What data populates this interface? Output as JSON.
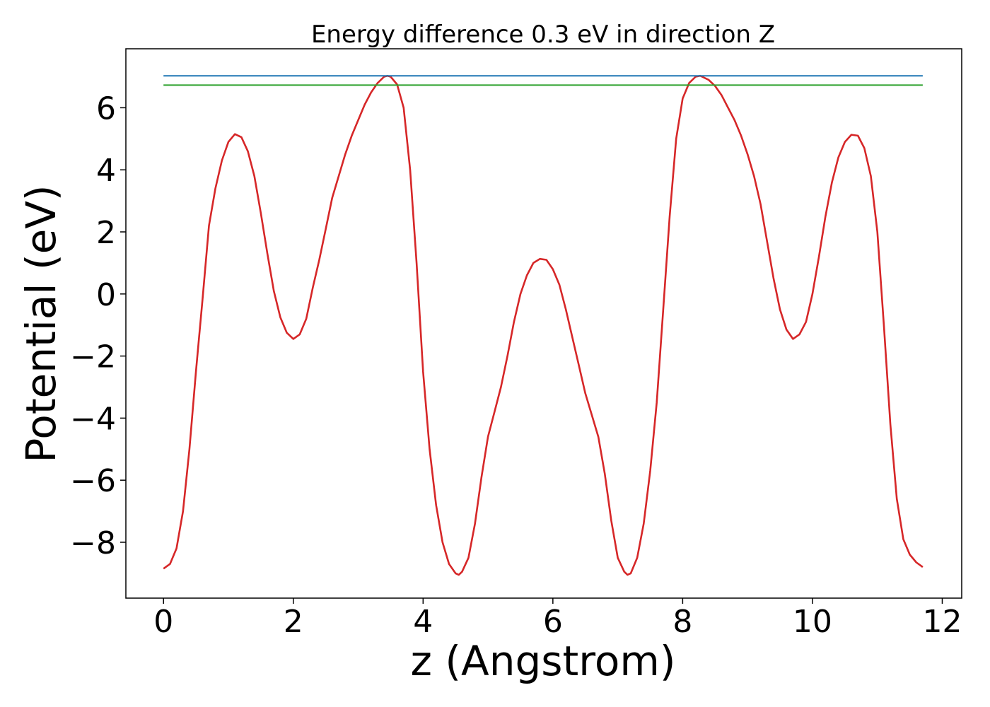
{
  "chart_data": {
    "type": "line",
    "title": "Energy difference 0.3 eV in direction Z",
    "xlabel": "z (Angstrom)",
    "ylabel": "Potential (eV)",
    "xlim": [
      -0.58,
      12.3
    ],
    "ylim": [
      -9.8,
      7.9
    ],
    "xticks": [
      0,
      2,
      4,
      6,
      8,
      10,
      12
    ],
    "yticks": [
      -8,
      -6,
      -4,
      -2,
      0,
      2,
      4,
      6
    ],
    "xtick_labels": [
      "0",
      "2",
      "4",
      "6",
      "8",
      "10",
      "12"
    ],
    "ytick_labels": [
      "−8",
      "−6",
      "−4",
      "−2",
      "0",
      "2",
      "4",
      "6"
    ],
    "grid": false,
    "legend": "none",
    "series": [
      {
        "color": "#d62728",
        "points": [
          [
            0.0,
            -8.85
          ],
          [
            0.1,
            -8.7
          ],
          [
            0.2,
            -8.2
          ],
          [
            0.3,
            -7.0
          ],
          [
            0.4,
            -5.0
          ],
          [
            0.5,
            -2.5
          ],
          [
            0.6,
            -0.2
          ],
          [
            0.7,
            2.2
          ],
          [
            0.8,
            3.4
          ],
          [
            0.9,
            4.3
          ],
          [
            1.0,
            4.9
          ],
          [
            1.1,
            5.15
          ],
          [
            1.2,
            5.05
          ],
          [
            1.3,
            4.6
          ],
          [
            1.4,
            3.8
          ],
          [
            1.5,
            2.6
          ],
          [
            1.6,
            1.3
          ],
          [
            1.7,
            0.1
          ],
          [
            1.8,
            -0.75
          ],
          [
            1.9,
            -1.25
          ],
          [
            2.0,
            -1.45
          ],
          [
            2.1,
            -1.3
          ],
          [
            2.2,
            -0.8
          ],
          [
            2.3,
            0.2
          ],
          [
            2.4,
            1.1
          ],
          [
            2.5,
            2.1
          ],
          [
            2.6,
            3.1
          ],
          [
            2.7,
            3.8
          ],
          [
            2.8,
            4.5
          ],
          [
            2.9,
            5.1
          ],
          [
            3.0,
            5.6
          ],
          [
            3.1,
            6.1
          ],
          [
            3.2,
            6.5
          ],
          [
            3.3,
            6.8
          ],
          [
            3.4,
            7.0
          ],
          [
            3.45,
            7.03
          ],
          [
            3.5,
            7.0
          ],
          [
            3.6,
            6.75
          ],
          [
            3.7,
            6.0
          ],
          [
            3.8,
            4.0
          ],
          [
            3.9,
            1.0
          ],
          [
            4.0,
            -2.5
          ],
          [
            4.1,
            -5.0
          ],
          [
            4.2,
            -6.8
          ],
          [
            4.3,
            -8.0
          ],
          [
            4.4,
            -8.7
          ],
          [
            4.5,
            -9.0
          ],
          [
            4.55,
            -9.05
          ],
          [
            4.6,
            -8.95
          ],
          [
            4.7,
            -8.5
          ],
          [
            4.8,
            -7.4
          ],
          [
            4.9,
            -5.9
          ],
          [
            5.0,
            -4.6
          ],
          [
            5.1,
            -3.8
          ],
          [
            5.2,
            -3.0
          ],
          [
            5.3,
            -2.0
          ],
          [
            5.4,
            -0.9
          ],
          [
            5.5,
            0.0
          ],
          [
            5.6,
            0.6
          ],
          [
            5.7,
            1.0
          ],
          [
            5.8,
            1.13
          ],
          [
            5.9,
            1.1
          ],
          [
            6.0,
            0.8
          ],
          [
            6.1,
            0.3
          ],
          [
            6.2,
            -0.5
          ],
          [
            6.3,
            -1.4
          ],
          [
            6.4,
            -2.3
          ],
          [
            6.5,
            -3.2
          ],
          [
            6.6,
            -3.9
          ],
          [
            6.7,
            -4.6
          ],
          [
            6.8,
            -5.8
          ],
          [
            6.9,
            -7.3
          ],
          [
            7.0,
            -8.5
          ],
          [
            7.1,
            -8.95
          ],
          [
            7.15,
            -9.05
          ],
          [
            7.2,
            -9.0
          ],
          [
            7.3,
            -8.5
          ],
          [
            7.4,
            -7.4
          ],
          [
            7.5,
            -5.7
          ],
          [
            7.6,
            -3.5
          ],
          [
            7.7,
            -0.5
          ],
          [
            7.8,
            2.5
          ],
          [
            7.9,
            5.0
          ],
          [
            8.0,
            6.3
          ],
          [
            8.1,
            6.8
          ],
          [
            8.2,
            7.0
          ],
          [
            8.27,
            7.03
          ],
          [
            8.3,
            7.0
          ],
          [
            8.4,
            6.9
          ],
          [
            8.5,
            6.7
          ],
          [
            8.6,
            6.4
          ],
          [
            8.7,
            6.0
          ],
          [
            8.8,
            5.6
          ],
          [
            8.9,
            5.1
          ],
          [
            9.0,
            4.5
          ],
          [
            9.1,
            3.8
          ],
          [
            9.2,
            2.9
          ],
          [
            9.3,
            1.7
          ],
          [
            9.4,
            0.5
          ],
          [
            9.5,
            -0.5
          ],
          [
            9.6,
            -1.15
          ],
          [
            9.7,
            -1.45
          ],
          [
            9.8,
            -1.3
          ],
          [
            9.9,
            -0.9
          ],
          [
            10.0,
            0.0
          ],
          [
            10.1,
            1.2
          ],
          [
            10.2,
            2.5
          ],
          [
            10.3,
            3.6
          ],
          [
            10.4,
            4.4
          ],
          [
            10.5,
            4.9
          ],
          [
            10.6,
            5.13
          ],
          [
            10.7,
            5.1
          ],
          [
            10.8,
            4.7
          ],
          [
            10.9,
            3.8
          ],
          [
            11.0,
            2.0
          ],
          [
            11.1,
            -1.0
          ],
          [
            11.2,
            -4.2
          ],
          [
            11.3,
            -6.6
          ],
          [
            11.4,
            -7.9
          ],
          [
            11.5,
            -8.4
          ],
          [
            11.6,
            -8.65
          ],
          [
            11.7,
            -8.8
          ]
        ]
      },
      {
        "color": "#1f77b4",
        "points": [
          [
            0.0,
            7.03
          ],
          [
            11.7,
            7.03
          ]
        ]
      },
      {
        "color": "#2ca02c",
        "points": [
          [
            0.0,
            6.73
          ],
          [
            11.7,
            6.73
          ]
        ]
      }
    ]
  }
}
